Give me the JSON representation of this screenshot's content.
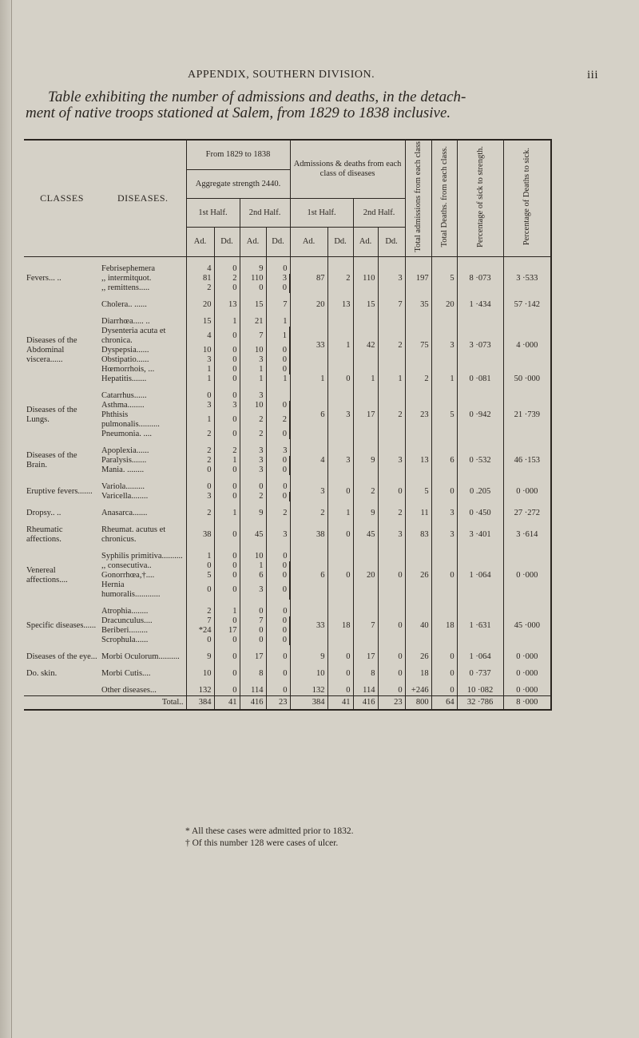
{
  "running_head": "APPENDIX, SOUTHERN DIVISION.",
  "page_number": "iii",
  "title_line1": "Table exhibiting the number of admissions and deaths, in the detach-",
  "title_line2": "ment of native troops stationed at Salem, from 1829 to 1838 inclusive.",
  "headers": {
    "classes": "CLASSES",
    "diseases": "DISEASES.",
    "period": "From 1829 to 1838",
    "strength": "Aggregate strength 2440.",
    "admissions": "Admissions & deaths from each class of diseases",
    "total_admissions": "Total admissions from each class",
    "total_deaths": "Total Deaths. from each class.",
    "pct_sick": "Percentage of sick to strength.",
    "pct_deaths": "Percentage of Deaths to sick.",
    "first_half": "1st Half.",
    "second_half": "2nd Half.",
    "ad": "Ad.",
    "dd": "Dd."
  },
  "groups": [
    {
      "class": "Fevers... ..",
      "diseases": [
        {
          "name": "Febrisephemera",
          "v": [
            "4",
            "0",
            "9",
            "0"
          ]
        },
        {
          "name": ",, intermitquot.",
          "v": [
            "81",
            "2",
            "110",
            "3"
          ]
        },
        {
          "name": ",, remittens.....",
          "v": [
            "2",
            "0",
            "0",
            "0"
          ]
        }
      ],
      "aggs": [
        {
          "span": 3,
          "v": [
            "87",
            "2",
            "110",
            "3",
            "197",
            "5",
            "8 ·073",
            "3 ·533"
          ]
        }
      ]
    },
    {
      "class": "",
      "diseases": [
        {
          "name": "Cholera.. ......",
          "v": [
            "20",
            "13",
            "15",
            "7"
          ]
        }
      ],
      "aggs": [
        {
          "span": 1,
          "v": [
            "20",
            "13",
            "15",
            "7",
            "35",
            "20",
            "1 ·434",
            "57 ·142"
          ]
        }
      ]
    },
    {
      "class": "Diseases of the Abdominal viscera......",
      "diseases": [
        {
          "name": "Diarrhœa..... ..",
          "v": [
            "15",
            "1",
            "21",
            "1"
          ]
        },
        {
          "name": "Dysenteria acuta et chronica.",
          "v": [
            "4",
            "0",
            "7",
            "1"
          ]
        },
        {
          "name": "Dyspepsia......",
          "v": [
            "10",
            "0",
            "10",
            "0"
          ]
        },
        {
          "name": "Obstipatio......",
          "v": [
            "3",
            "0",
            "3",
            "0"
          ]
        },
        {
          "name": "Hœmorrhois, ...",
          "v": [
            "1",
            "0",
            "1",
            "0"
          ]
        },
        {
          "name": "Hepatitis.......",
          "v": [
            "1",
            "0",
            "1",
            "1"
          ]
        }
      ],
      "aggs": [
        {
          "span": 5,
          "v": [
            "33",
            "1",
            "42",
            "2",
            "75",
            "3",
            "3 ·073",
            "4 ·000"
          ]
        },
        {
          "span": 1,
          "v": [
            "1",
            "0",
            "1",
            "1",
            "2",
            "1",
            "0 ·081",
            "50 ·000"
          ]
        }
      ]
    },
    {
      "class": "Diseases of the Lungs.",
      "diseases": [
        {
          "name": "Catarrhus......",
          "v": [
            "0",
            "0",
            "3",
            ""
          ]
        },
        {
          "name": "Asthma........",
          "v": [
            "3",
            "3",
            "10",
            "0"
          ]
        },
        {
          "name": "Phthisis pulmonalis..........",
          "v": [
            "1",
            "0",
            "2",
            "2"
          ]
        },
        {
          "name": "Pneumonia. ....",
          "v": [
            "2",
            "0",
            "2",
            "0"
          ]
        }
      ],
      "aggs": [
        {
          "span": 4,
          "v": [
            "6",
            "3",
            "17",
            "2",
            "23",
            "5",
            "0 ·942",
            "21 ·739"
          ]
        }
      ]
    },
    {
      "class": "Diseases of the Brain.",
      "diseases": [
        {
          "name": "Apoplexia......",
          "v": [
            "2",
            "2",
            "3",
            "3"
          ]
        },
        {
          "name": "Paralysis.......",
          "v": [
            "2",
            "1",
            "3",
            "0"
          ]
        },
        {
          "name": "Mania. ........",
          "v": [
            "0",
            "0",
            "3",
            "0"
          ]
        }
      ],
      "aggs": [
        {
          "span": 3,
          "v": [
            "4",
            "3",
            "9",
            "3",
            "13",
            "6",
            "0 ·532",
            "46 ·153"
          ]
        }
      ]
    },
    {
      "class": "Eruptive fevers.......",
      "diseases": [
        {
          "name": "Variola.........",
          "v": [
            "0",
            "0",
            "0",
            "0"
          ]
        },
        {
          "name": "Varicella........",
          "v": [
            "3",
            "0",
            "2",
            "0"
          ]
        }
      ],
      "aggs": [
        {
          "span": 2,
          "v": [
            "3",
            "0",
            "2",
            "0",
            "5",
            "0",
            "0 .205",
            "0 ·000"
          ]
        }
      ]
    },
    {
      "class": "Dropsy.. ..",
      "diseases": [
        {
          "name": "Anasarca.......",
          "v": [
            "2",
            "1",
            "9",
            "2"
          ]
        }
      ],
      "aggs": [
        {
          "span": 1,
          "v": [
            "2",
            "1",
            "9",
            "2",
            "11",
            "3",
            "0 ·450",
            "27 ·272"
          ]
        }
      ]
    },
    {
      "class": "Rheumatic affections.",
      "diseases": [
        {
          "name": "Rheumat. acutus et chronicus.",
          "v": [
            "38",
            "0",
            "45",
            "3"
          ]
        }
      ],
      "aggs": [
        {
          "span": 1,
          "v": [
            "38",
            "0",
            "45",
            "3",
            "83",
            "3",
            "3 ·401",
            "3 ·614"
          ]
        }
      ]
    },
    {
      "class": "Venereal affections....",
      "diseases": [
        {
          "name": "Syphilis primitiva..........",
          "v": [
            "1",
            "0",
            "10",
            "0"
          ]
        },
        {
          "name": ",, consecutiva..",
          "v": [
            "0",
            "0",
            "1",
            "0"
          ]
        },
        {
          "name": "Gonorrhœa,†....",
          "v": [
            "5",
            "0",
            "6",
            "0"
          ]
        },
        {
          "name": "Hernia humoralis............",
          "v": [
            "0",
            "0",
            "3",
            "0"
          ]
        }
      ],
      "aggs": [
        {
          "span": 4,
          "v": [
            "6",
            "0",
            "20",
            "0",
            "26",
            "0",
            "1 ·064",
            "0 ·000"
          ]
        }
      ]
    },
    {
      "class": "Specific diseases......",
      "diseases": [
        {
          "name": "Atrophia........",
          "v": [
            "2",
            "1",
            "0",
            "0"
          ]
        },
        {
          "name": "Dracunculus....",
          "v": [
            "7",
            "0",
            "7",
            "0"
          ]
        },
        {
          "name": "Beriberi.........",
          "v": [
            "*24",
            "17",
            "0",
            "0"
          ]
        },
        {
          "name": "Scrophula......",
          "v": [
            "0",
            "0",
            "0",
            "0"
          ]
        }
      ],
      "aggs": [
        {
          "span": 4,
          "v": [
            "33",
            "18",
            "7",
            "0",
            "40",
            "18",
            "1 ·631",
            "45 ·000"
          ]
        }
      ]
    },
    {
      "class": "Diseases of the eye...",
      "diseases": [
        {
          "name": "Morbi Oculorum..........",
          "v": [
            "9",
            "0",
            "17",
            "0"
          ]
        }
      ],
      "aggs": [
        {
          "span": 1,
          "v": [
            "9",
            "0",
            "17",
            "0",
            "26",
            "0",
            "1 ·064",
            "0 ·000"
          ]
        }
      ]
    },
    {
      "class": "Do. skin.",
      "diseases": [
        {
          "name": "Morbi Cutis....",
          "v": [
            "10",
            "0",
            "8",
            "0"
          ]
        }
      ],
      "aggs": [
        {
          "span": 1,
          "v": [
            "10",
            "0",
            "8",
            "0",
            "18",
            "0",
            "0 ·737",
            "0 ·000"
          ]
        }
      ]
    },
    {
      "class": "",
      "diseases": [
        {
          "name": "Other diseases...",
          "v": [
            "132",
            "0",
            "114",
            "0"
          ]
        }
      ],
      "aggs": [
        {
          "span": 1,
          "v": [
            "132",
            "0",
            "114",
            "0",
            "+246",
            "0",
            "10 ·082",
            "0 ·000"
          ]
        }
      ]
    }
  ],
  "total": {
    "label": "Total..",
    "v": [
      "384",
      "41",
      "416",
      "23"
    ],
    "agg": [
      "384",
      "41",
      "416",
      "23",
      "800",
      "64",
      "32 ·786",
      "8 ·000"
    ]
  },
  "footnotes": [
    "* All these cases were admitted prior to 1832.",
    "† Of this number 128 were cases of ulcer."
  ]
}
